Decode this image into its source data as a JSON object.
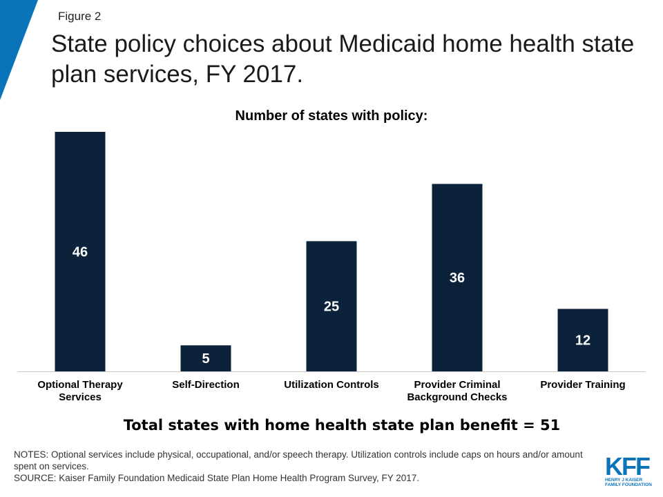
{
  "header": {
    "figure_label": "Figure 2",
    "title": "State policy choices about Medicaid home health state plan services, FY 2017."
  },
  "chart_data": {
    "type": "bar",
    "title": "Number of states with policy:",
    "categories": [
      [
        "Optional Therapy",
        "Services"
      ],
      [
        "Self-Direction"
      ],
      [
        "Utilization Controls"
      ],
      [
        "Provider Criminal",
        "Background Checks"
      ],
      [
        "Provider Training"
      ]
    ],
    "values": [
      46,
      5,
      25,
      36,
      12
    ],
    "data_labels": [
      "46",
      "5",
      "25",
      "36",
      "12"
    ],
    "ylim": [
      0,
      46
    ],
    "grid": false,
    "legend": "none",
    "bar_color": "#0b223a",
    "label_color": "#ffffff"
  },
  "footer": {
    "total": "Total states with home health state plan benefit = 51",
    "notes": "NOTES:  Optional services include physical, occupational, and/or speech therapy. Utilization controls include caps on hours and/or amount spent on services.",
    "source": "SOURCE:  Kaiser Family Foundation Medicaid State Plan Home Health Program Survey, FY 2017."
  },
  "logo": {
    "mark": "KFF",
    "line1": "HENRY J KAISER",
    "line2": "FAMILY FOUNDATION"
  },
  "colors": {
    "accent": "#0a74ba"
  }
}
